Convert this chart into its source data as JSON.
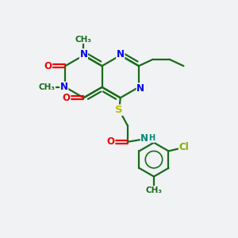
{
  "bg_color": "#f0f2f4",
  "bond_color": "#1a6b1a",
  "n_color": "#0000ee",
  "o_color": "#ee0000",
  "s_color": "#bbbb00",
  "cl_color": "#88aa00",
  "nh_color": "#008877",
  "line_width": 1.6,
  "font_size": 8.5,
  "figsize": [
    3.0,
    3.0
  ],
  "dpi": 100,
  "xlim": [
    0,
    10
  ],
  "ylim": [
    0,
    10
  ]
}
